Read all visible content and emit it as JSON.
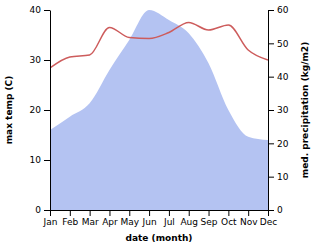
{
  "chart_data": {
    "type": "line",
    "categories": [
      "Jan",
      "Feb",
      "Mar",
      "Apr",
      "May",
      "Jun",
      "Jul",
      "Aug",
      "Sep",
      "Oct",
      "Nov",
      "Dec"
    ],
    "xlabel": "date (month)",
    "ylabel": "max temp (C)",
    "y2label": "med. precipitation (kg/m2)",
    "ylim": [
      0,
      40
    ],
    "yticks": [
      0,
      10,
      20,
      30,
      40
    ],
    "y2lim": [
      0,
      60
    ],
    "y2ticks": [
      0,
      10,
      20,
      30,
      40,
      50,
      60
    ],
    "grid": false,
    "series": [
      {
        "type": "area",
        "axis": "y2",
        "color": "#b4c3f2",
        "values": [
          24,
          28,
          32,
          42,
          51,
          60,
          57,
          53,
          44,
          30,
          22,
          21
        ]
      },
      {
        "type": "line",
        "color": "#cd5c5c",
        "values": [
          28.4,
          30.6,
          31,
          36.5,
          34.5,
          34.3,
          35.5,
          37.5,
          36,
          37,
          32,
          30
        ]
      }
    ]
  }
}
